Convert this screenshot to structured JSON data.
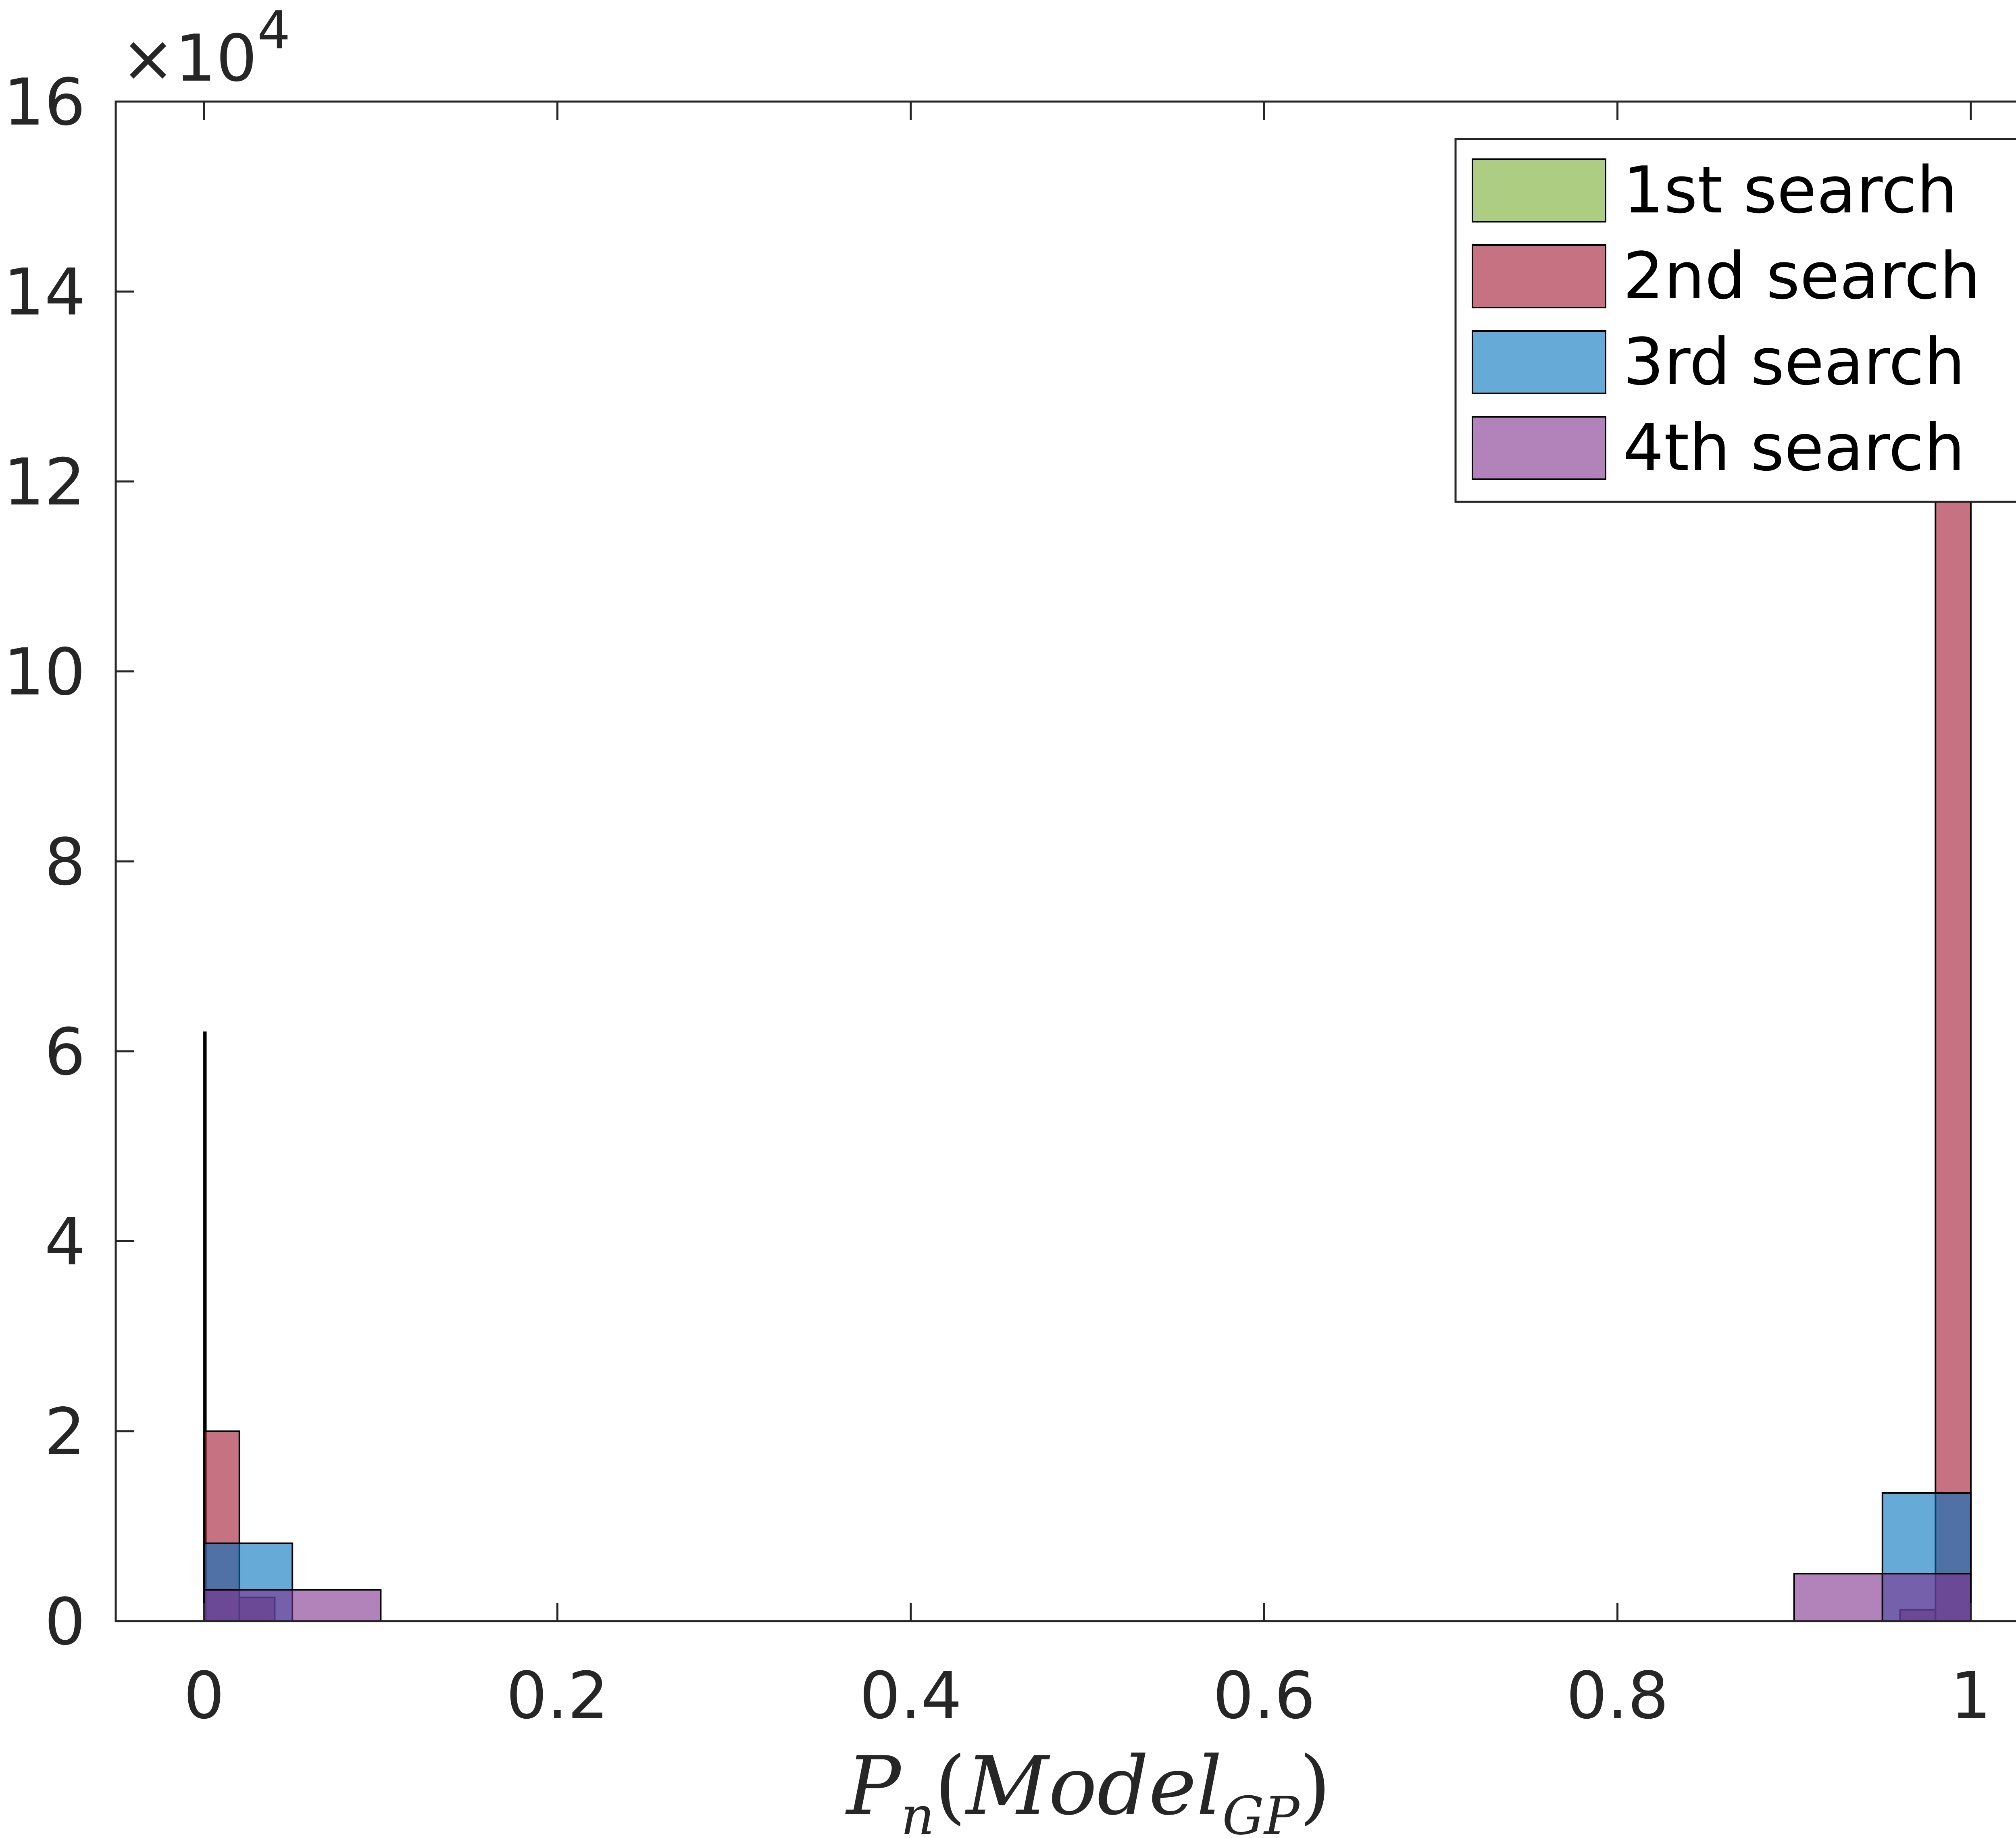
{
  "chart_data": {
    "type": "bar",
    "title": "",
    "xlabel": {
      "main": "P",
      "sub_n": "n",
      "paren_open": "(",
      "model": "Model",
      "sub_gp": "GP",
      "paren_close": ")"
    },
    "ylabel": "",
    "xlim": [
      -0.05,
      1.05
    ],
    "ylim": [
      0,
      160000
    ],
    "y_exponent": {
      "base": "×10",
      "power": "4"
    },
    "x_ticks": [
      0,
      0.2,
      0.4,
      0.6,
      0.8,
      1
    ],
    "x_tick_labels": [
      "0",
      "0.2",
      "0.4",
      "0.6",
      "0.8",
      "1"
    ],
    "y_ticks": [
      0,
      20000,
      40000,
      60000,
      80000,
      100000,
      120000,
      140000,
      160000
    ],
    "y_tick_labels": [
      "0",
      "2",
      "4",
      "6",
      "8",
      "10",
      "12",
      "14",
      "16"
    ],
    "legend_position": "top-right",
    "series": [
      {
        "name": "1st search",
        "color": "#77ac30",
        "bins": [
          {
            "x0": 0.0,
            "x1": 0.001,
            "y": 62000
          }
        ]
      },
      {
        "name": "2nd search",
        "color": "#a2142f",
        "bins": [
          {
            "x0": 0.0,
            "x1": 0.02,
            "y": 20000
          },
          {
            "x0": 0.02,
            "x1": 0.04,
            "y": 2500
          },
          {
            "x0": 0.96,
            "x1": 0.98,
            "y": 1200
          },
          {
            "x0": 0.98,
            "x1": 1.0,
            "y": 119000
          }
        ]
      },
      {
        "name": "3rd search",
        "color": "#0072bd",
        "bins": [
          {
            "x0": 0.0,
            "x1": 0.05,
            "y": 8200
          },
          {
            "x0": 0.95,
            "x1": 1.0,
            "y": 13500
          }
        ]
      },
      {
        "name": "4th search",
        "color": "#7e2f8e",
        "bins": [
          {
            "x0": 0.0,
            "x1": 0.1,
            "y": 3300
          },
          {
            "x0": 0.9,
            "x1": 0.95,
            "y": 5000
          },
          {
            "x0": 0.95,
            "x1": 1.0,
            "y": 5000
          }
        ]
      }
    ]
  }
}
